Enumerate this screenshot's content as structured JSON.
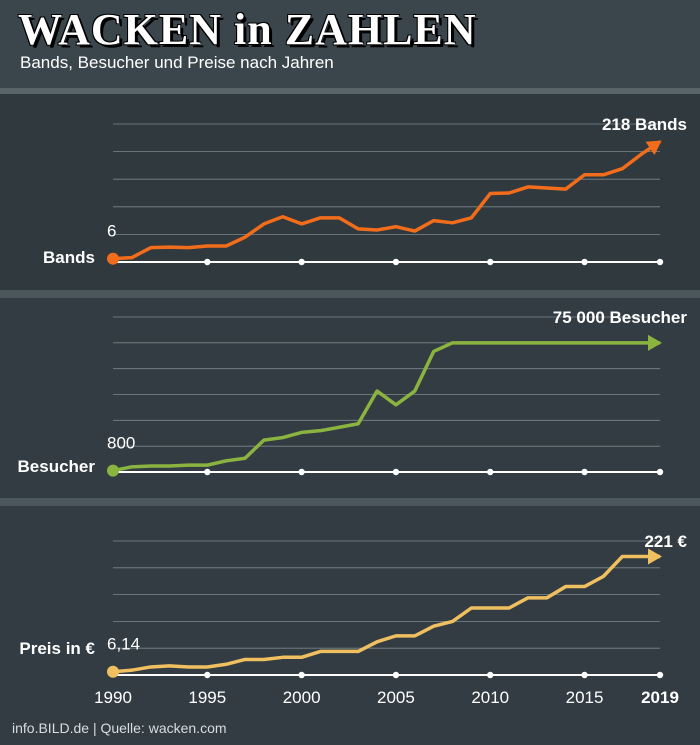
{
  "title": "WACKEN in ZAHLEN",
  "subtitle": "Bands, Besucher und Preise nach Jahren",
  "source": "info.BILD.de | Quelle: wacken.com",
  "chart_data": [
    {
      "type": "line",
      "label": "Bands",
      "color": "#f26d1b",
      "x": [
        1990,
        1991,
        1992,
        1993,
        1994,
        1995,
        1996,
        1997,
        1998,
        1999,
        2000,
        2001,
        2002,
        2003,
        2004,
        2005,
        2006,
        2007,
        2008,
        2009,
        2010,
        2011,
        2012,
        2013,
        2014,
        2015,
        2016,
        2017,
        2018,
        2019
      ],
      "values": [
        6,
        8,
        26,
        27,
        26,
        29,
        29,
        45,
        69,
        82,
        69,
        80,
        80,
        60,
        58,
        64,
        56,
        75,
        71,
        80,
        124,
        125,
        136,
        134,
        132,
        158,
        158,
        169,
        195,
        218
      ],
      "value_labels": [
        "6",
        null,
        null,
        null,
        null,
        null,
        null,
        null,
        null,
        null,
        null,
        null,
        null,
        null,
        null,
        null,
        null,
        null,
        null,
        null,
        null,
        null,
        null,
        null,
        null,
        null,
        null,
        null,
        null,
        "218 Bands"
      ],
      "xlim": [
        1990,
        2019
      ],
      "xticks": [
        1990,
        1995,
        2000,
        2005,
        2010,
        2015,
        2019
      ],
      "ylim": [
        0,
        250
      ],
      "yticks": [
        0,
        50,
        100,
        150,
        200,
        250
      ],
      "grid": true
    },
    {
      "type": "line",
      "label": "Besucher",
      "color": "#8ab43f",
      "x": [
        1990,
        1991,
        1992,
        1993,
        1994,
        1995,
        1996,
        1997,
        1998,
        1999,
        2000,
        2001,
        2002,
        2003,
        2004,
        2005,
        2006,
        2007,
        2008,
        2009,
        2010,
        2011,
        2012,
        2013,
        2014,
        2015,
        2016,
        2017,
        2018,
        2019
      ],
      "values": [
        800,
        3000,
        3500,
        3500,
        4000,
        4000,
        6500,
        8000,
        18500,
        20000,
        23000,
        24000,
        26000,
        28000,
        47000,
        39000,
        47000,
        70000,
        75000,
        75000,
        75000,
        75000,
        75000,
        75000,
        75000,
        75000,
        75000,
        75000,
        75000,
        75000
      ],
      "value_labels": [
        "800",
        null,
        null,
        null,
        null,
        null,
        null,
        null,
        null,
        null,
        null,
        null,
        null,
        null,
        null,
        null,
        null,
        null,
        null,
        null,
        null,
        null,
        null,
        null,
        null,
        null,
        null,
        null,
        null,
        "75 000 Besucher"
      ],
      "xlim": [
        1990,
        2019
      ],
      "xticks": [
        1990,
        1995,
        2000,
        2005,
        2010,
        2015,
        2019
      ],
      "ylim": [
        0,
        90000
      ],
      "yticks": [
        0,
        15000,
        30000,
        45000,
        60000,
        75000,
        90000
      ],
      "grid": true
    },
    {
      "type": "line",
      "label": "Preis in €",
      "color": "#f0c060",
      "x": [
        1990,
        1991,
        1992,
        1993,
        1994,
        1995,
        1996,
        1997,
        1998,
        1999,
        2000,
        2001,
        2002,
        2003,
        2004,
        2005,
        2006,
        2007,
        2008,
        2009,
        2010,
        2011,
        2012,
        2013,
        2014,
        2015,
        2016,
        2017,
        2018,
        2019
      ],
      "values": [
        6.14,
        9,
        15,
        17,
        15,
        15,
        20,
        29,
        29,
        33,
        33,
        44,
        44,
        44,
        62,
        73,
        73,
        91,
        100,
        125,
        125,
        125,
        144,
        144,
        165,
        165,
        184,
        221,
        221,
        221
      ],
      "value_labels": [
        "6,14",
        null,
        null,
        null,
        null,
        null,
        null,
        null,
        null,
        null,
        null,
        null,
        null,
        null,
        null,
        null,
        null,
        null,
        null,
        null,
        null,
        null,
        null,
        null,
        null,
        null,
        null,
        null,
        null,
        "221 €"
      ],
      "xlim": [
        1990,
        2019
      ],
      "xticks": [
        1990,
        1995,
        2000,
        2005,
        2010,
        2015,
        2019
      ],
      "ylim": [
        0,
        250
      ],
      "yticks": [
        0,
        50,
        100,
        150,
        200,
        250
      ],
      "grid": true
    }
  ]
}
